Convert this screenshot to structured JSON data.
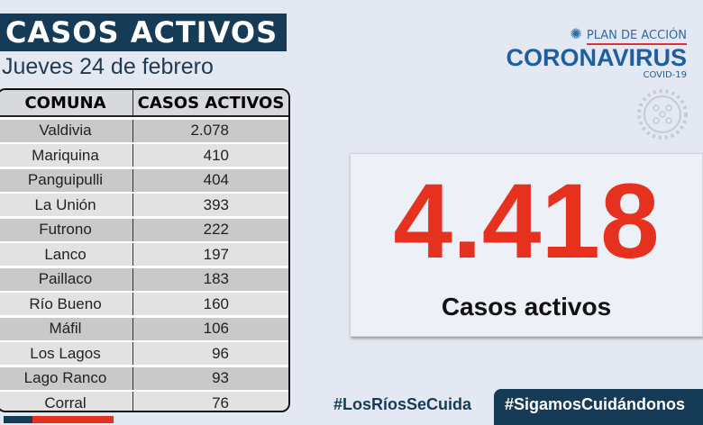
{
  "title": "CASOS ACTIVOS",
  "date": "Jueves 24 de febrero",
  "table": {
    "headers": [
      "COMUNA",
      "CASOS ACTIVOS"
    ],
    "rows": [
      [
        "Valdivia",
        "2.078"
      ],
      [
        "Mariquina",
        "410"
      ],
      [
        "Panguipulli",
        "404"
      ],
      [
        "La Unión",
        "393"
      ],
      [
        "Futrono",
        "222"
      ],
      [
        "Lanco",
        "197"
      ],
      [
        "Paillaco",
        "183"
      ],
      [
        "Río Bueno",
        "160"
      ],
      [
        "Máfil",
        "106"
      ],
      [
        "Los Lagos",
        "96"
      ],
      [
        "Lago Ranco",
        "93"
      ],
      [
        "Corral",
        "76"
      ]
    ]
  },
  "logo": {
    "plan": "PLAN DE ACCIÓN",
    "name": "CORONAVIRUS",
    "sub": "COVID-19"
  },
  "total": {
    "value": "4.418",
    "label": "Casos activos"
  },
  "hashtags": [
    "#LosRíosSeCuida",
    "#SigamosCuidándonos"
  ],
  "colors": {
    "navy": "#163b57",
    "red": "#e5311d",
    "blue": "#1d5fa3"
  }
}
